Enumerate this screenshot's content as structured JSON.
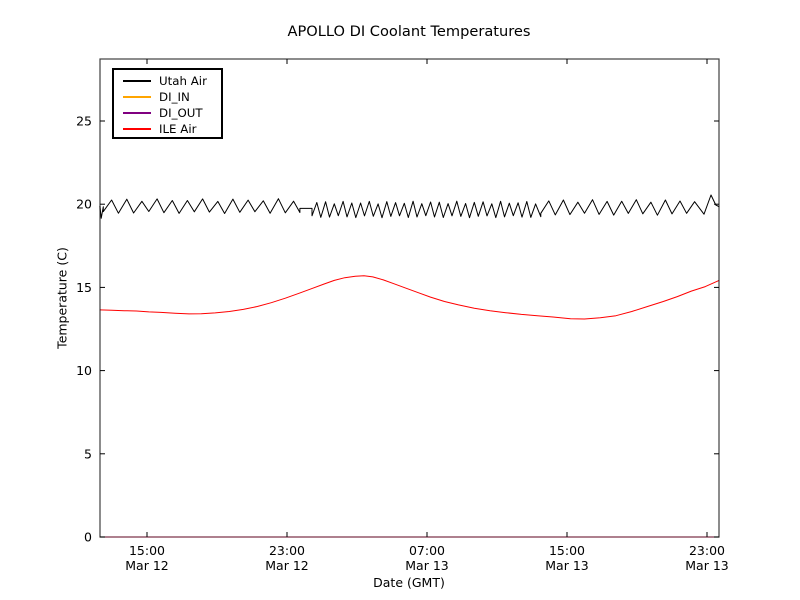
{
  "title": "APOLLO DI Coolant Temperatures",
  "axes": {
    "x_label": "Date (GMT)",
    "y_label": "Temperature (C)"
  },
  "chart_data": {
    "type": "line",
    "title": "APOLLO DI Coolant Temperatures",
    "xlabel": "Date (GMT)",
    "ylabel": "Temperature (C)",
    "grid": false,
    "legend_position": "upper left",
    "x_unit": "hours since Mar 12 00:00 GMT",
    "xlim": [
      12.31,
      47.69
    ],
    "ylim": [
      0,
      28.7
    ],
    "y_ticks": [
      0,
      5,
      10,
      15,
      20,
      25
    ],
    "x_ticks": [
      {
        "t": 15,
        "time": "15:00",
        "date": "Mar 12"
      },
      {
        "t": 23,
        "time": "23:00",
        "date": "Mar 12"
      },
      {
        "t": 31,
        "time": "07:00",
        "date": "Mar 13"
      },
      {
        "t": 39,
        "time": "15:00",
        "date": "Mar 13"
      },
      {
        "t": 47,
        "time": "23:00",
        "date": "Mar 13"
      }
    ],
    "series": [
      {
        "name": "Utah Air",
        "color": "#000000",
        "shape": "sawtooth oscillation around 20 C",
        "approx_range_c": [
          19.2,
          20.6
        ],
        "synthesis": {
          "prefix_points": [
            [
              12.31,
              19.9
            ],
            [
              12.38,
              19.15
            ],
            [
              12.5,
              19.85
            ]
          ],
          "segments": [
            {
              "t0": 12.5,
              "t1": 23.74,
              "period_min": 52,
              "lo": 19.5,
              "hi": 20.25
            },
            {
              "t0": 23.74,
              "t1": 24.43,
              "period_min": 41,
              "lo": 19.75,
              "hi": 19.75
            },
            {
              "t0": 24.43,
              "t1": 37.5,
              "period_min": 30,
              "lo": 19.25,
              "hi": 20.1
            },
            {
              "t0": 37.5,
              "t1": 46.83,
              "period_min": 50,
              "lo": 19.4,
              "hi": 20.2
            }
          ],
          "suffix_points": [
            [
              47.23,
              20.55
            ],
            [
              47.5,
              19.95
            ],
            [
              47.69,
              19.85
            ]
          ]
        }
      },
      {
        "name": "DI_IN",
        "color": "#ffa500",
        "shape": "flat at 0 C along bottom axis",
        "points": [
          [
            12.31,
            0
          ],
          [
            47.69,
            0
          ]
        ]
      },
      {
        "name": "DI_OUT",
        "color": "#800080",
        "shape": "flat at 0 C along bottom axis",
        "points": [
          [
            12.31,
            0
          ],
          [
            47.69,
            0
          ]
        ]
      },
      {
        "name": "ILE Air",
        "color": "#ff0000",
        "shape": "smooth diurnal curve",
        "points": [
          [
            12.31,
            13.65
          ],
          [
            13.0,
            13.63
          ],
          [
            13.7,
            13.6
          ],
          [
            14.4,
            13.58
          ],
          [
            15.1,
            13.53
          ],
          [
            15.8,
            13.5
          ],
          [
            16.6,
            13.45
          ],
          [
            17.4,
            13.41
          ],
          [
            18.1,
            13.42
          ],
          [
            18.9,
            13.47
          ],
          [
            19.7,
            13.55
          ],
          [
            20.5,
            13.68
          ],
          [
            21.3,
            13.85
          ],
          [
            22.1,
            14.08
          ],
          [
            22.9,
            14.35
          ],
          [
            23.7,
            14.65
          ],
          [
            24.4,
            14.92
          ],
          [
            25.1,
            15.2
          ],
          [
            25.7,
            15.42
          ],
          [
            26.3,
            15.58
          ],
          [
            26.9,
            15.67
          ],
          [
            27.4,
            15.7
          ],
          [
            27.9,
            15.63
          ],
          [
            28.5,
            15.45
          ],
          [
            29.1,
            15.22
          ],
          [
            29.8,
            14.95
          ],
          [
            30.5,
            14.68
          ],
          [
            31.2,
            14.42
          ],
          [
            32.0,
            14.15
          ],
          [
            32.8,
            13.95
          ],
          [
            33.7,
            13.75
          ],
          [
            34.6,
            13.6
          ],
          [
            35.5,
            13.48
          ],
          [
            36.4,
            13.38
          ],
          [
            37.3,
            13.3
          ],
          [
            38.2,
            13.22
          ],
          [
            39.2,
            13.12
          ],
          [
            40.0,
            13.1
          ],
          [
            40.9,
            13.18
          ],
          [
            41.8,
            13.3
          ],
          [
            42.7,
            13.55
          ],
          [
            43.6,
            13.85
          ],
          [
            44.5,
            14.15
          ],
          [
            45.3,
            14.45
          ],
          [
            46.1,
            14.78
          ],
          [
            46.9,
            15.05
          ],
          [
            47.4,
            15.28
          ],
          [
            47.69,
            15.42
          ]
        ]
      }
    ]
  }
}
